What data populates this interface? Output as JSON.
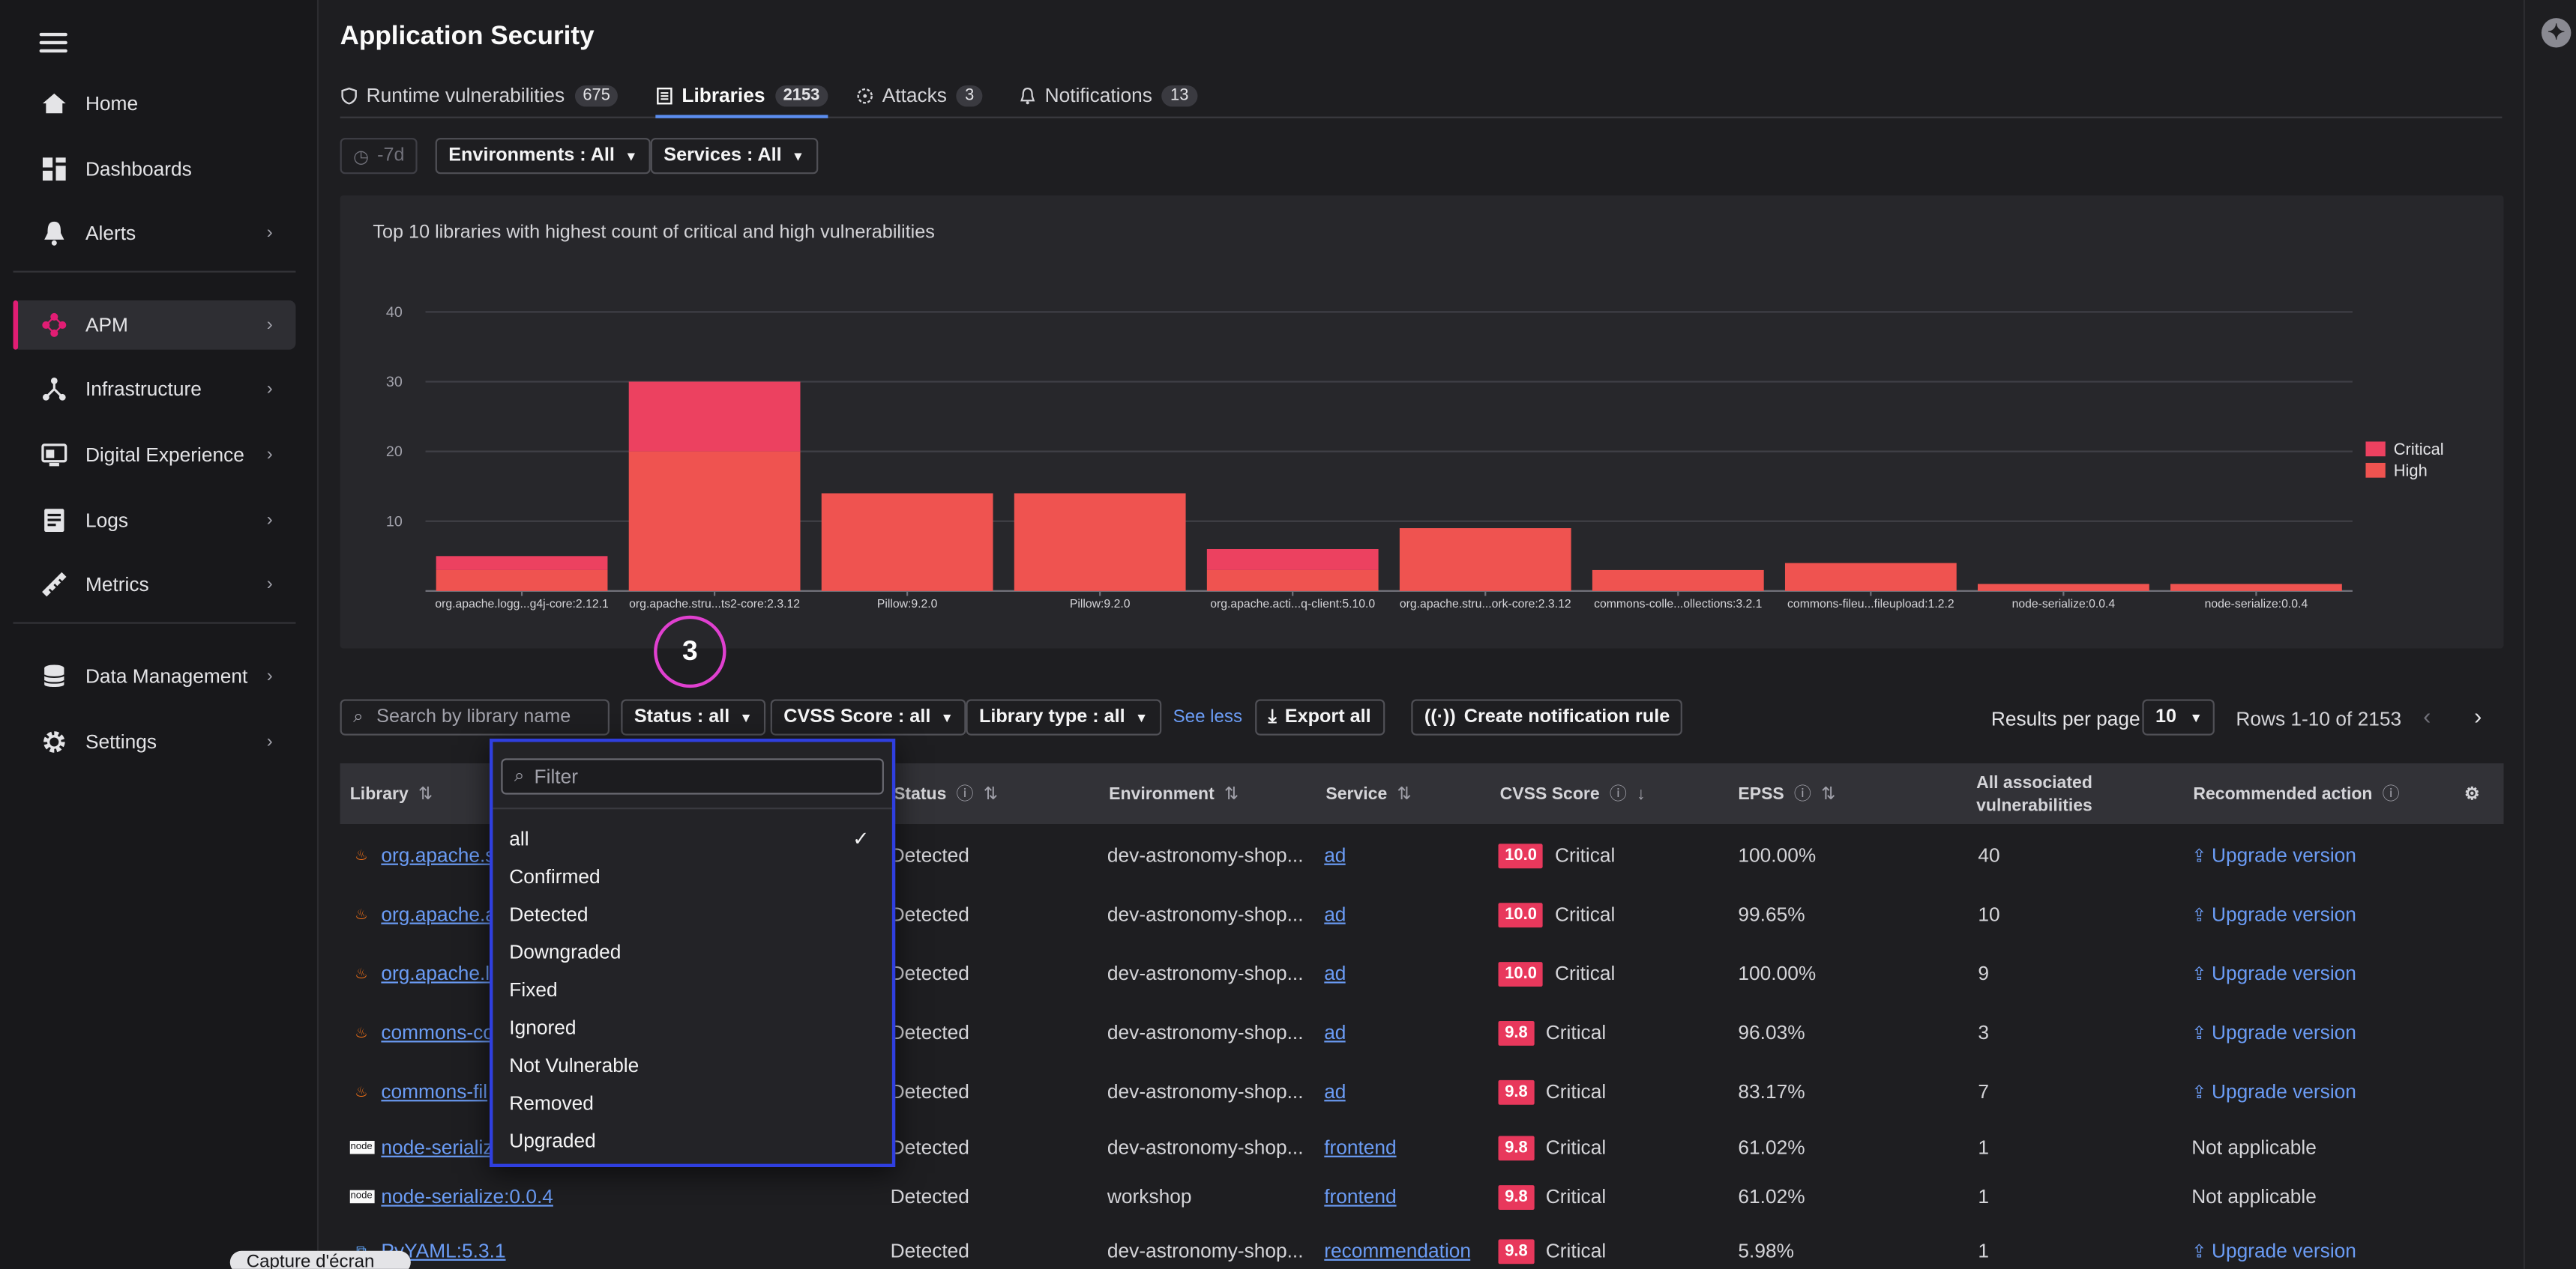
{
  "app": {
    "title": "Application Security"
  },
  "sidebar": {
    "items": [
      {
        "label": "Home",
        "icon": "home-icon",
        "chevron": false
      },
      {
        "label": "Dashboards",
        "icon": "dashboards-icon",
        "chevron": false
      },
      {
        "label": "Alerts",
        "icon": "bell-icon",
        "chevron": true
      },
      {
        "label": "APM",
        "icon": "apm-icon",
        "chevron": true,
        "active": true
      },
      {
        "label": "Infrastructure",
        "icon": "infrastructure-icon",
        "chevron": true
      },
      {
        "label": "Digital Experience",
        "icon": "digital-experience-icon",
        "chevron": true
      },
      {
        "label": "Logs",
        "icon": "logs-icon",
        "chevron": true
      },
      {
        "label": "Metrics",
        "icon": "metrics-icon",
        "chevron": true
      },
      {
        "label": "Data Management",
        "icon": "database-icon",
        "chevron": true
      },
      {
        "label": "Settings",
        "icon": "gear-icon",
        "chevron": true
      }
    ]
  },
  "tabs": [
    {
      "label": "Runtime vulnerabilities",
      "count": "675",
      "icon": "shield-icon"
    },
    {
      "label": "Libraries",
      "count": "2153",
      "icon": "library-icon",
      "active": true
    },
    {
      "label": "Attacks",
      "count": "3",
      "icon": "attack-icon"
    },
    {
      "label": "Notifications",
      "count": "13",
      "icon": "bell-icon"
    }
  ],
  "toolbar": {
    "time": "-7d",
    "environments": "Environments : All",
    "services": "Services : All"
  },
  "chart_data": {
    "type": "bar",
    "title": "Top 10 libraries with highest count of critical and high vulnerabilities",
    "categories": [
      "org.apache.logg...g4j-core:2.12.1",
      "org.apache.stru...ts2-core:2.3.12",
      "Pillow:9.2.0",
      "Pillow:9.2.0",
      "org.apache.acti...q-client:5.10.0",
      "org.apache.stru...ork-core:2.3.12",
      "commons-colle...ollections:3.2.1",
      "commons-fileu...fileupload:1.2.2",
      "node-serialize:0.0.4",
      "node-serialize:0.0.4"
    ],
    "series": [
      {
        "name": "High",
        "color": "#ef5350",
        "values": [
          3,
          20,
          14,
          14,
          3,
          9,
          3,
          4,
          1,
          1
        ]
      },
      {
        "name": "Critical",
        "color": "#ec4160",
        "values": [
          2,
          10,
          0,
          0,
          3,
          0,
          0,
          0,
          0,
          0
        ]
      }
    ],
    "ylim": [
      0,
      40
    ],
    "yticks": [
      "10",
      "20",
      "30",
      "40"
    ],
    "stacked": true,
    "grid": true,
    "legend": "right"
  },
  "annotation": "3",
  "filters": {
    "search_placeholder": "Search by library name",
    "status": "Status : all",
    "cvss": "CVSS Score : all",
    "library_type": "Library type : all",
    "see_less": "See less",
    "export": "Export all",
    "notify": "Create notification rule",
    "results_label": "Results per page",
    "results_value": "10",
    "rows_label": "Rows 1-10 of 2153"
  },
  "table": {
    "columns": [
      "Library",
      "Status",
      "Environment",
      "Service",
      "CVSS Score",
      "EPSS",
      "All associated vulnerabilities",
      "Recommended action"
    ],
    "rows": [
      {
        "library": "org.apache.s",
        "type": "java",
        "status": "Detected",
        "env": "dev-astronomy-shop...",
        "service": "ad",
        "score": "10.0",
        "severity": "Critical",
        "epss": "100.00%",
        "vulns": "40",
        "action": "Upgrade version",
        "action_link": true
      },
      {
        "library": "org.apache.a",
        "type": "java",
        "status": "Detected",
        "env": "dev-astronomy-shop...",
        "service": "ad",
        "score": "10.0",
        "severity": "Critical",
        "epss": "99.65%",
        "vulns": "10",
        "action": "Upgrade version",
        "action_link": true
      },
      {
        "library": "org.apache.lo",
        "type": "java",
        "status": "Detected",
        "env": "dev-astronomy-shop...",
        "service": "ad",
        "score": "10.0",
        "severity": "Critical",
        "epss": "100.00%",
        "vulns": "9",
        "action": "Upgrade version",
        "action_link": true
      },
      {
        "library": "commons-co",
        "type": "java",
        "status": "Detected",
        "env": "dev-astronomy-shop...",
        "service": "ad",
        "score": "9.8",
        "severity": "Critical",
        "epss": "96.03%",
        "vulns": "3",
        "action": "Upgrade version",
        "action_link": true
      },
      {
        "library": "commons-fil",
        "type": "java",
        "status": "Detected",
        "env": "dev-astronomy-shop...",
        "service": "ad",
        "score": "9.8",
        "severity": "Critical",
        "epss": "83.17%",
        "vulns": "7",
        "action": "Upgrade version",
        "action_link": true
      },
      {
        "library": "node-serializ",
        "type": "node",
        "status": "Detected",
        "env": "dev-astronomy-shop...",
        "service": "frontend",
        "score": "9.8",
        "severity": "Critical",
        "epss": "61.02%",
        "vulns": "1",
        "action": "Not applicable",
        "action_link": false
      },
      {
        "library": "node-serialize:0.0.4",
        "type": "node",
        "status": "Detected",
        "env": "workshop",
        "service": "frontend",
        "score": "9.8",
        "severity": "Critical",
        "epss": "61.02%",
        "vulns": "1",
        "action": "Not applicable",
        "action_link": false
      },
      {
        "library": "PyYAML:5.3.1",
        "type": "python",
        "status": "Detected",
        "env": "dev-astronomy-shop...",
        "service": "recommendation",
        "score": "9.8",
        "severity": "Critical",
        "epss": "5.98%",
        "vulns": "1",
        "action": "Upgrade version",
        "action_link": true
      }
    ]
  },
  "dropdown": {
    "filter_placeholder": "Filter",
    "options": [
      "all",
      "Confirmed",
      "Detected",
      "Downgraded",
      "Fixed",
      "Ignored",
      "Not Vulnerable",
      "Removed",
      "Upgraded"
    ],
    "selected": "all"
  },
  "tooltip": "Capture d'écran"
}
